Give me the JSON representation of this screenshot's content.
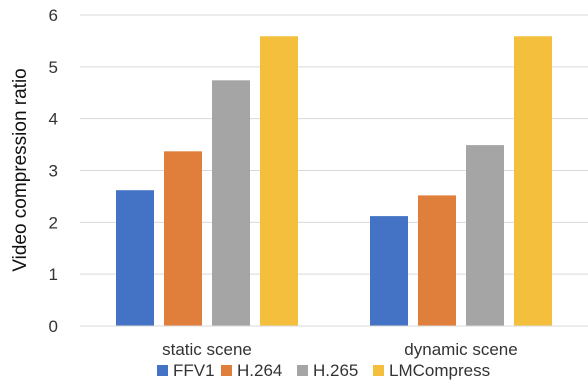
{
  "chart_data": {
    "type": "bar",
    "title": "",
    "xlabel": "",
    "ylabel": "Video compression ratio",
    "ylim": [
      0,
      6
    ],
    "yticks": [
      0,
      1,
      2,
      3,
      4,
      5,
      6
    ],
    "grid": true,
    "legend_position": "bottom",
    "categories": [
      "static scene",
      "dynamic scene"
    ],
    "series": [
      {
        "name": "FFV1",
        "color": "#4472C4",
        "values": [
          2.62,
          2.12
        ]
      },
      {
        "name": "H.264",
        "color": "#E07E3C",
        "values": [
          3.37,
          2.52
        ]
      },
      {
        "name": "H.265",
        "color": "#A5A5A5",
        "values": [
          4.74,
          3.49
        ]
      },
      {
        "name": "LMCompress",
        "color": "#F5BF3E",
        "values": [
          5.59,
          5.59
        ]
      }
    ]
  }
}
